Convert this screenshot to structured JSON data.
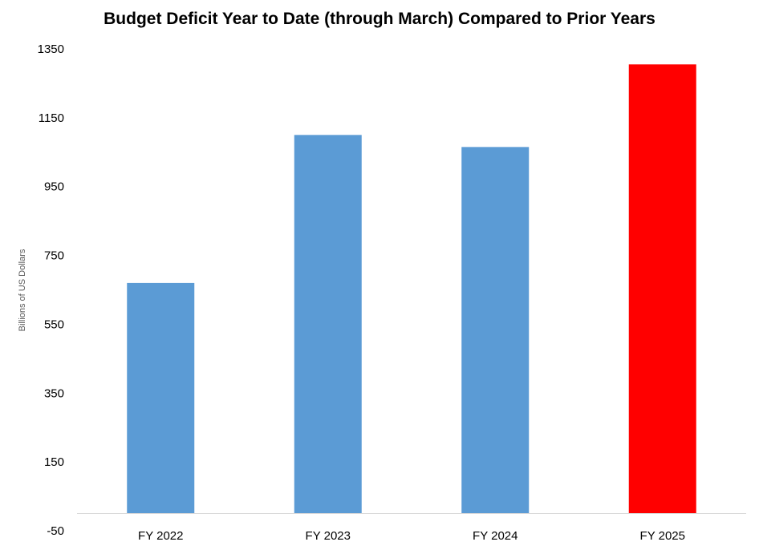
{
  "chart_data": {
    "type": "bar",
    "title": "Budget Deficit Year to Date (through March) Compared to Prior Years",
    "xlabel": "",
    "ylabel": "Billions of US Dollars",
    "categories": [
      "FY 2022",
      "FY 2023",
      "FY 2024",
      "FY 2025"
    ],
    "values": [
      670,
      1100,
      1065,
      1305
    ],
    "bar_colors": [
      "#5b9bd5",
      "#5b9bd5",
      "#5b9bd5",
      "#ff0000"
    ],
    "ylim": [
      -50,
      1350
    ],
    "yticks": [
      -50,
      150,
      350,
      550,
      750,
      950,
      1150,
      1350
    ],
    "ytick_labels": [
      "-50",
      "150",
      "350",
      "550",
      "750",
      "950",
      "1150",
      "1350"
    ],
    "grid": false,
    "legend": "none"
  }
}
